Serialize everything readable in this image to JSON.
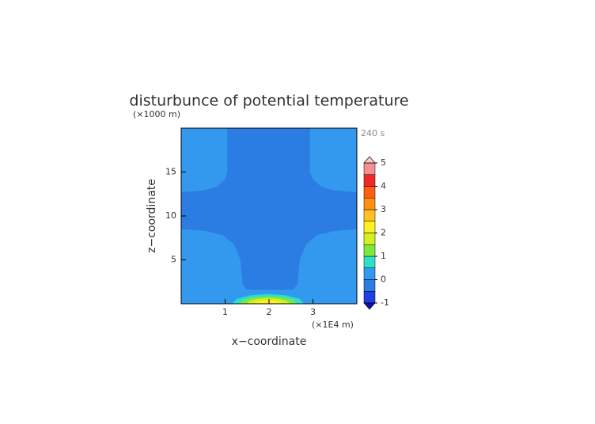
{
  "chart_data": {
    "type": "contour",
    "title": "disturbunce of potential temperature",
    "x_label": "x−coordinate",
    "y_label": "z−coordinate",
    "x_unit": "(×1E4 m)",
    "y_unit": "(×1000 m)",
    "time_label": "240 s",
    "xlim": [
      0,
      4
    ],
    "ylim": [
      0,
      20
    ],
    "xticks": [
      1,
      2,
      3
    ],
    "yticks": [
      5,
      10,
      15
    ],
    "fills": [
      {
        "level": 0,
        "points": [
          [
            0,
            0
          ],
          [
            4,
            0
          ],
          [
            4,
            20
          ],
          [
            0,
            20
          ]
        ]
      },
      {
        "level": -0.5,
        "points": [
          [
            1.05,
            20
          ],
          [
            2.93,
            20
          ],
          [
            2.93,
            15
          ],
          [
            3.0,
            14.2
          ],
          [
            3.2,
            13.3
          ],
          [
            3.5,
            12.9
          ],
          [
            4,
            12.7
          ],
          [
            4,
            8.5
          ],
          [
            3.5,
            8.3
          ],
          [
            3.1,
            7.8
          ],
          [
            2.85,
            6.8
          ],
          [
            2.7,
            5
          ],
          [
            2.65,
            2.2
          ],
          [
            2.55,
            1.6
          ],
          [
            1.5,
            1.6
          ],
          [
            1.4,
            2.2
          ],
          [
            1.35,
            5
          ],
          [
            1.2,
            6.8
          ],
          [
            0.95,
            7.8
          ],
          [
            0.55,
            8.3
          ],
          [
            0,
            8.5
          ],
          [
            0,
            12.7
          ],
          [
            0.5,
            12.9
          ],
          [
            0.8,
            13.3
          ],
          [
            1.0,
            14.2
          ],
          [
            1.05,
            15
          ]
        ]
      },
      {
        "level": 0.5,
        "points": [
          [
            2.8,
            0
          ],
          [
            2.69,
            0.55
          ],
          [
            2.39,
            0.95
          ],
          [
            1.98,
            1.1
          ],
          [
            1.57,
            0.95
          ],
          [
            1.27,
            0.55
          ],
          [
            1.16,
            0
          ]
        ]
      },
      {
        "level": 1,
        "points": [
          [
            2.63,
            0
          ],
          [
            2.54,
            0.43
          ],
          [
            2.31,
            0.74
          ],
          [
            1.98,
            0.85
          ],
          [
            1.66,
            0.74
          ],
          [
            1.42,
            0.43
          ],
          [
            1.33,
            0
          ]
        ]
      },
      {
        "level": 1.5,
        "points": [
          [
            2.46,
            0
          ],
          [
            2.4,
            0.33
          ],
          [
            2.22,
            0.56
          ],
          [
            1.98,
            0.65
          ],
          [
            1.74,
            0.56
          ],
          [
            1.56,
            0.33
          ],
          [
            1.5,
            0
          ]
        ]
      },
      {
        "level": 2,
        "points": [
          [
            2.28,
            0
          ],
          [
            2.24,
            0.2
          ],
          [
            2.13,
            0.35
          ],
          [
            1.98,
            0.4
          ],
          [
            1.83,
            0.35
          ],
          [
            1.72,
            0.2
          ],
          [
            1.68,
            0
          ]
        ]
      }
    ],
    "colorbar": {
      "levels": [
        -1,
        -0.5,
        0,
        0.5,
        1,
        1.5,
        2,
        2.5,
        3,
        3.5,
        4,
        4.5,
        5
      ],
      "colors": [
        "#1f3fe0",
        "#2b7de3",
        "#3399ee",
        "#2fe0c8",
        "#7ee83c",
        "#d4f020",
        "#fff020",
        "#ffc020",
        "#ff9010",
        "#ff6010",
        "#f02828",
        "#f49090"
      ],
      "under_color": "#1010b0",
      "over_color": "#fcc8c8",
      "ticks": [
        -1,
        0,
        1,
        2,
        3,
        4,
        5
      ]
    }
  }
}
